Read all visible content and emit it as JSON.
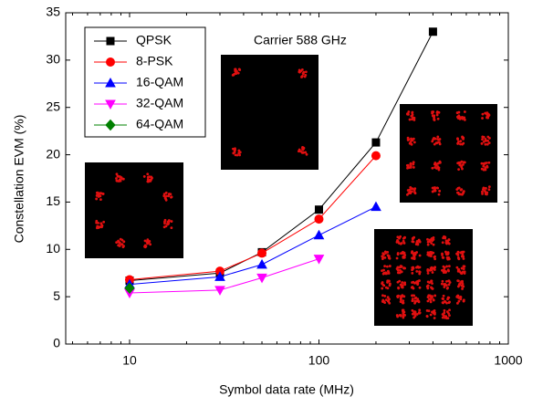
{
  "chart_data": {
    "type": "line",
    "xscale": "log",
    "xlabel": "Symbol data rate (MHz)",
    "ylabel": "Constellation EVM (%)",
    "annotation": "Carrier 588 GHz",
    "xlim": [
      4.6,
      1000
    ],
    "xticks": [
      10,
      100,
      1000
    ],
    "ylim": [
      0,
      35
    ],
    "yticks": [
      0,
      5,
      10,
      15,
      20,
      25,
      30,
      35
    ],
    "legend": "upper left",
    "series": [
      {
        "name": "QPSK",
        "color": "#000000",
        "marker": "square",
        "x": [
          10,
          30,
          50,
          100,
          200,
          400
        ],
        "values": [
          6.7,
          7.5,
          9.7,
          14.2,
          21.3,
          33
        ]
      },
      {
        "name": "8-PSK",
        "color": "#ff0000",
        "marker": "circle",
        "x": [
          10,
          30,
          50,
          100,
          200
        ],
        "values": [
          6.8,
          7.7,
          9.6,
          13.2,
          19.9
        ]
      },
      {
        "name": "16-QAM",
        "color": "#0000ff",
        "marker": "triangle-up",
        "x": [
          10,
          30,
          50,
          100,
          200
        ],
        "values": [
          6.3,
          7.1,
          8.4,
          11.5,
          14.5
        ]
      },
      {
        "name": "32-QAM",
        "color": "#ff00ff",
        "marker": "triangle-down",
        "x": [
          10,
          30,
          50,
          100
        ],
        "values": [
          5.4,
          5.7,
          7.0,
          9.0
        ]
      },
      {
        "name": "64-QAM",
        "color": "#008000",
        "marker": "diamond",
        "x": [
          10
        ],
        "values": [
          5.9
        ]
      }
    ]
  }
}
